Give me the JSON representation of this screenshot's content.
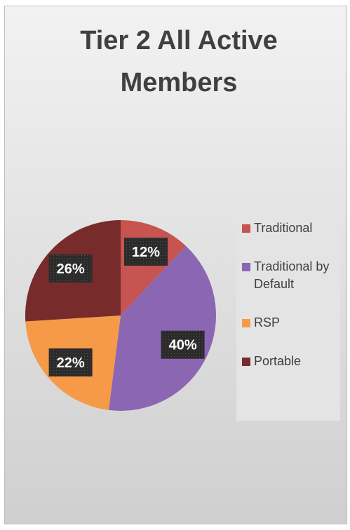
{
  "chart_data": {
    "type": "pie",
    "title": "Tier 2 All Active Members",
    "categories": [
      "Traditional",
      "Traditional by Default",
      "RSP",
      "Portable"
    ],
    "values": [
      12,
      40,
      22,
      26
    ],
    "value_labels": [
      "12%",
      "40%",
      "22%",
      "26%"
    ],
    "colors": [
      "#c65450",
      "#8b66b3",
      "#f79a48",
      "#772b2a"
    ],
    "legend": "right"
  }
}
